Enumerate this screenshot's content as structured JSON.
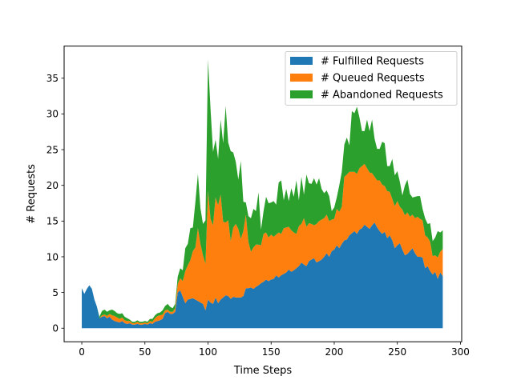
{
  "chart_data": {
    "type": "area",
    "stacked": true,
    "xlabel": "Time Steps",
    "ylabel": "# Requests",
    "xlim": [
      -14,
      301
    ],
    "ylim": [
      -1.9,
      39.5
    ],
    "xticks": [
      0,
      50,
      100,
      150,
      200,
      250,
      300
    ],
    "yticks": [
      0,
      5,
      10,
      15,
      20,
      25,
      30,
      35
    ],
    "grid": false,
    "legend_position": "top-right",
    "x": [
      0,
      2,
      4,
      6,
      8,
      10,
      12,
      14,
      16,
      18,
      20,
      22,
      24,
      26,
      28,
      30,
      32,
      34,
      36,
      38,
      40,
      42,
      44,
      46,
      48,
      50,
      52,
      54,
      56,
      58,
      60,
      62,
      64,
      66,
      68,
      70,
      72,
      74,
      76,
      78,
      80,
      82,
      84,
      86,
      88,
      90,
      92,
      94,
      96,
      98,
      100,
      102,
      104,
      106,
      108,
      110,
      112,
      114,
      116,
      118,
      120,
      122,
      124,
      126,
      128,
      130,
      132,
      134,
      136,
      138,
      140,
      142,
      144,
      146,
      148,
      150,
      152,
      154,
      156,
      158,
      160,
      162,
      164,
      166,
      168,
      170,
      172,
      174,
      176,
      178,
      180,
      182,
      184,
      186,
      188,
      190,
      192,
      194,
      196,
      198,
      200,
      202,
      204,
      206,
      208,
      210,
      212,
      214,
      216,
      218,
      220,
      222,
      224,
      226,
      228,
      230,
      232,
      234,
      236,
      238,
      240,
      242,
      244,
      246,
      248,
      250,
      252,
      254,
      256,
      258,
      260,
      262,
      264,
      266,
      268,
      270,
      272,
      274,
      276,
      278,
      280,
      282,
      284,
      286
    ],
    "series": [
      {
        "name": "# Fulfilled Requests",
        "color": "#1f77b4",
        "values": [
          5.6,
          4.8,
          5.5,
          6.0,
          5.5,
          4.0,
          3.0,
          1.4,
          1.6,
          1.7,
          1.4,
          1.6,
          1.2,
          1.0,
          0.9,
          0.8,
          1.0,
          0.7,
          0.6,
          0.7,
          0.5,
          0.5,
          0.6,
          0.5,
          0.5,
          0.6,
          0.5,
          0.7,
          0.6,
          0.9,
          1.0,
          1.1,
          1.3,
          2.1,
          2.3,
          2.0,
          2.0,
          2.3,
          5.0,
          5.3,
          4.4,
          3.5,
          4.0,
          4.1,
          4.2,
          4.0,
          3.8,
          3.6,
          3.4,
          2.5,
          4.0,
          3.6,
          3.4,
          4.3,
          3.5,
          4.0,
          4.3,
          4.6,
          4.5,
          4.1,
          4.4,
          4.3,
          4.3,
          4.3,
          4.5,
          5.6,
          5.6,
          5.7,
          5.5,
          5.8,
          6.0,
          6.3,
          6.5,
          6.8,
          6.6,
          6.8,
          6.9,
          7.4,
          7.1,
          7.4,
          7.6,
          7.8,
          8.2,
          7.9,
          8.1,
          8.4,
          8.7,
          9.2,
          8.9,
          8.7,
          9.4,
          9.6,
          9.8,
          9.2,
          9.4,
          9.6,
          10.0,
          10.5,
          10.0,
          10.8,
          11.0,
          11.6,
          11.2,
          11.8,
          12.3,
          12.4,
          13.0,
          13.3,
          13.6,
          13.2,
          13.8,
          14.0,
          14.5,
          14.2,
          13.9,
          14.4,
          14.8,
          14.1,
          13.6,
          13.2,
          13.5,
          12.6,
          13.0,
          12.3,
          11.2,
          11.6,
          11.9,
          11.0,
          10.2,
          10.4,
          10.8,
          11.2,
          10.5,
          10.0,
          10.0,
          9.9,
          8.4,
          8.7,
          8.0,
          7.5,
          7.9,
          6.9,
          7.8,
          7.3
        ]
      },
      {
        "name": "# Queued Requests",
        "color": "#ff7f0e",
        "values": [
          0.0,
          0.0,
          0.0,
          0.0,
          0.0,
          0.0,
          0.0,
          0.0,
          0.2,
          0.2,
          0.3,
          0.4,
          0.6,
          0.7,
          0.6,
          0.5,
          0.5,
          0.4,
          0.4,
          0.3,
          0.2,
          0.2,
          0.3,
          0.2,
          0.2,
          0.2,
          0.2,
          0.3,
          0.3,
          0.5,
          0.7,
          0.7,
          0.6,
          0.4,
          0.3,
          0.3,
          0.3,
          0.5,
          1.2,
          1.7,
          2.2,
          4.5,
          4.8,
          5.4,
          6.6,
          7.3,
          10.2,
          8.2,
          6.8,
          6.5,
          15.2,
          11.7,
          11.0,
          14.0,
          13.7,
          14.7,
          10.6,
          10.2,
          10.6,
          8.1,
          9.7,
          10.3,
          9.6,
          8.2,
          9.1,
          10.3,
          6.5,
          5.0,
          5.8,
          5.9,
          5.7,
          5.3,
          6.7,
          6.6,
          6.1,
          6.3,
          5.9,
          5.7,
          6.3,
          5.8,
          6.4,
          6.3,
          6.0,
          5.8,
          5.3,
          4.8,
          5.6,
          5.4,
          6.5,
          5.5,
          5.3,
          5.0,
          4.6,
          5.4,
          5.6,
          5.6,
          5.4,
          5.4,
          5.0,
          4.4,
          4.3,
          5.1,
          5.1,
          5.2,
          8.9,
          9.1,
          8.9,
          8.6,
          8.3,
          8.4,
          8.6,
          8.7,
          8.5,
          8.2,
          7.9,
          7.3,
          6.4,
          6.6,
          7.1,
          6.9,
          6.4,
          6.6,
          6.1,
          5.8,
          5.9,
          6.2,
          5.1,
          5.6,
          5.6,
          5.8,
          4.8,
          4.7,
          4.9,
          5.6,
          5.3,
          5.2,
          4.6,
          4.0,
          4.1,
          2.6,
          2.3,
          3.0,
          2.9,
          3.8
        ]
      },
      {
        "name": "# Abandoned Requests",
        "color": "#2ca02c",
        "values": [
          0.0,
          0.0,
          0.0,
          0.0,
          0.0,
          0.0,
          0.0,
          0.2,
          0.6,
          0.7,
          0.6,
          0.5,
          0.8,
          0.7,
          0.6,
          0.7,
          0.6,
          0.5,
          0.4,
          0.2,
          0.2,
          0.2,
          0.2,
          0.2,
          0.2,
          0.2,
          0.2,
          0.3,
          0.4,
          0.4,
          0.4,
          0.4,
          0.6,
          0.6,
          0.8,
          0.7,
          0.5,
          0.6,
          1.0,
          1.4,
          1.5,
          3.2,
          3.0,
          4.5,
          3.3,
          6.4,
          7.6,
          5.0,
          4.4,
          6.1,
          18.4,
          15.4,
          10.3,
          8.1,
          6.5,
          10.5,
          11.0,
          16.3,
          10.9,
          12.6,
          10.5,
          8.7,
          6.9,
          10.9,
          4.1,
          1.7,
          3.6,
          4.7,
          5.4,
          4.7,
          7.3,
          2.2,
          3.2,
          5.0,
          4.8,
          4.5,
          5.0,
          4.2,
          7.0,
          7.5,
          3.9,
          5.4,
          3.6,
          5.9,
          5.0,
          7.5,
          3.6,
          6.6,
          3.3,
          7.3,
          5.6,
          5.6,
          6.6,
          5.5,
          6.0,
          4.3,
          3.5,
          3.4,
          3.5,
          1.2,
          1.6,
          1.6,
          3.7,
          4.9,
          4.5,
          5.2,
          3.7,
          8.5,
          8.2,
          9.4,
          7.1,
          4.9,
          4.6,
          6.8,
          5.8,
          7.5,
          5.3,
          4.4,
          4.4,
          6.0,
          6.0,
          3.5,
          3.6,
          5.6,
          4.3,
          4.2,
          3.5,
          2.0,
          4.2,
          4.6,
          3.2,
          2.4,
          3.0,
          2.9,
          3.2,
          1.6,
          2.4,
          1.9,
          2.6,
          2.1,
          2.5,
          3.7,
          2.7,
          2.6
        ]
      }
    ]
  }
}
